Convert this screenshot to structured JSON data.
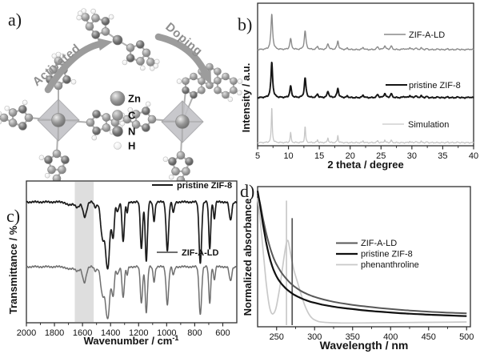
{
  "panels": {
    "a": {
      "letter": "a)",
      "arrows": {
        "left": "Activated",
        "right": "Doping"
      },
      "atom_legend": [
        {
          "element": "Zn"
        },
        {
          "element": "C"
        },
        {
          "element": "N"
        },
        {
          "element": "H"
        }
      ]
    },
    "b": {
      "letter": "b)",
      "xlabel": "2 theta / degree",
      "ylabel": "Intensity / a.u."
    },
    "c": {
      "letter": "c)",
      "xlabel": "Wavenumber / cm",
      "xlabel_sup": "-1",
      "ylabel": "Transmittance / %"
    },
    "d": {
      "letter": "d)",
      "xlabel": "Wavelength / nm",
      "ylabel": "Normalized absorbance"
    }
  },
  "chart_data": [
    {
      "id": "xrd",
      "panel": "b",
      "type": "line",
      "title": "",
      "xlabel": "2 theta / degree",
      "ylabel": "Intensity / a.u.",
      "xlim": [
        5,
        40
      ],
      "xticks": [
        5,
        10,
        15,
        20,
        25,
        30,
        35,
        40
      ],
      "x_minor_step": 2.5,
      "grid": false,
      "legend_position": "right-inside-per-trace",
      "series": [
        {
          "name": "ZIF-A-LD",
          "color": "#8a8a8a",
          "stroke_width": 1.4,
          "baseline_frac": 0.326,
          "amp_frac": 0.25,
          "peak_width": 0.16,
          "peaks_2theta_intensity": [
            [
              7.3,
              1.0
            ],
            [
              10.35,
              0.3
            ],
            [
              12.7,
              0.52
            ],
            [
              14.7,
              0.09
            ],
            [
              16.4,
              0.17
            ],
            [
              18.0,
              0.24
            ],
            [
              19.55,
              0.04
            ],
            [
              22.1,
              0.06
            ],
            [
              24.45,
              0.08
            ],
            [
              25.6,
              0.11
            ],
            [
              26.65,
              0.1
            ],
            [
              28.7,
              0.03
            ],
            [
              29.65,
              0.055
            ],
            [
              30.6,
              0.045
            ],
            [
              31.5,
              0.045
            ],
            [
              32.4,
              0.025
            ],
            [
              34.25,
              0.02
            ],
            [
              35.8,
              0.02
            ],
            [
              37.5,
              0.018
            ],
            [
              39.3,
              0.018
            ]
          ]
        },
        {
          "name": "pristine ZIF-8",
          "color": "#151515",
          "stroke_width": 1.9,
          "baseline_frac": 0.663,
          "amp_frac": 0.25,
          "peak_width": 0.16,
          "peaks_2theta_intensity": [
            [
              7.3,
              1.0
            ],
            [
              10.35,
              0.32
            ],
            [
              12.7,
              0.55
            ],
            [
              14.7,
              0.1
            ],
            [
              16.4,
              0.18
            ],
            [
              18.0,
              0.26
            ],
            [
              19.55,
              0.045
            ],
            [
              22.1,
              0.07
            ],
            [
              24.45,
              0.09
            ],
            [
              25.6,
              0.12
            ],
            [
              26.65,
              0.11
            ],
            [
              28.7,
              0.035
            ],
            [
              29.65,
              0.06
            ],
            [
              30.6,
              0.05
            ],
            [
              31.5,
              0.05
            ],
            [
              32.4,
              0.03
            ],
            [
              34.25,
              0.02
            ],
            [
              35.8,
              0.02
            ],
            [
              37.5,
              0.02
            ],
            [
              39.3,
              0.02
            ]
          ]
        },
        {
          "name": "Simulation",
          "color": "#c6c6c6",
          "stroke_width": 1.3,
          "baseline_frac": 0.978,
          "amp_frac": 0.25,
          "peak_width": 0.09,
          "peaks_2theta_intensity": [
            [
              7.3,
              1.0
            ],
            [
              10.35,
              0.28
            ],
            [
              12.7,
              0.45
            ],
            [
              14.7,
              0.08
            ],
            [
              16.4,
              0.14
            ],
            [
              18.0,
              0.2
            ],
            [
              22.1,
              0.05
            ],
            [
              24.45,
              0.06
            ],
            [
              25.6,
              0.08
            ],
            [
              26.65,
              0.07
            ],
            [
              29.65,
              0.04
            ],
            [
              30.6,
              0.035
            ],
            [
              31.5,
              0.035
            ],
            [
              32.4,
              0.02
            ],
            [
              35.8,
              0.015
            ],
            [
              37.5,
              0.015
            ]
          ]
        }
      ]
    },
    {
      "id": "ftir",
      "panel": "c",
      "type": "line",
      "title": "",
      "xlabel": "Wavenumber / cm-1",
      "ylabel": "Transmittance / %",
      "xlim": [
        2000,
        500
      ],
      "xticks": [
        2000,
        1800,
        1600,
        1400,
        1200,
        1000,
        800,
        600
      ],
      "x_minor_step": 100,
      "grid": false,
      "highlight_band": {
        "x1": 1655,
        "x2": 1520,
        "color": "#d6d6d6"
      },
      "series": [
        {
          "name": "pristine ZIF-8",
          "color": "#1b1b1b",
          "stroke_width": 1.7,
          "baseline_frac": 0.148,
          "depth_frac": 0.47,
          "absorption_bands_center_depth_width": [
            [
              1693,
              0.05,
              20
            ],
            [
              1635,
              0.08,
              16
            ],
            [
              1584,
              0.22,
              13
            ],
            [
              1508,
              0.08,
              10
            ],
            [
              1458,
              0.52,
              13
            ],
            [
              1421,
              1.0,
              15
            ],
            [
              1382,
              0.52,
              9
            ],
            [
              1350,
              0.15,
              8
            ],
            [
              1310,
              0.6,
              8
            ],
            [
              1282,
              0.16,
              6
            ],
            [
              1180,
              0.7,
              8
            ],
            [
              1145,
              0.88,
              8
            ],
            [
              1090,
              0.28,
              7
            ],
            [
              995,
              0.72,
              9
            ],
            [
              952,
              0.16,
              7
            ],
            [
              760,
              0.92,
              9
            ],
            [
              693,
              0.7,
              7
            ],
            [
              660,
              0.26,
              6
            ],
            [
              545,
              0.28,
              9
            ]
          ]
        },
        {
          "name": "ZIF-A-LD",
          "color": "#6f6f6f",
          "stroke_width": 1.5,
          "baseline_frac": 0.605,
          "depth_frac": 0.365,
          "absorption_bands_center_depth_width": [
            [
              1693,
              0.05,
              20
            ],
            [
              1635,
              0.08,
              16
            ],
            [
              1587,
              0.3,
              13
            ],
            [
              1508,
              0.08,
              10
            ],
            [
              1458,
              0.52,
              13
            ],
            [
              1421,
              1.0,
              15
            ],
            [
              1382,
              0.55,
              9
            ],
            [
              1350,
              0.15,
              8
            ],
            [
              1310,
              0.6,
              8
            ],
            [
              1282,
              0.16,
              6
            ],
            [
              1180,
              0.7,
              8
            ],
            [
              1145,
              0.88,
              8
            ],
            [
              1090,
              0.28,
              7
            ],
            [
              995,
              0.72,
              9
            ],
            [
              952,
              0.16,
              7
            ],
            [
              760,
              0.92,
              9
            ],
            [
              693,
              0.7,
              7
            ],
            [
              660,
              0.26,
              6
            ],
            [
              545,
              0.28,
              9
            ]
          ]
        }
      ]
    },
    {
      "id": "uvvis",
      "panel": "d",
      "type": "line",
      "title": "",
      "xlabel": "Wavelength / nm",
      "ylabel": "Normalized absorbance",
      "xlim": [
        225,
        505
      ],
      "xticks": [
        250,
        300,
        350,
        400,
        450,
        500
      ],
      "x_minor_step": 25,
      "grid": false,
      "legend_position": "center-right-inside",
      "vlines": [
        {
          "x": 263,
          "color": "#c9c9c9",
          "height_frac": 0.9
        },
        {
          "x": 270.5,
          "color": "#555555",
          "height_frac": 0.775
        }
      ],
      "series": [
        {
          "name": "ZIF-A-LD",
          "color": "#585858",
          "stroke_width": 2.0,
          "points_nm_abs": [
            [
              225,
              0.95
            ],
            [
              228,
              0.885
            ],
            [
              232,
              0.775
            ],
            [
              236,
              0.675
            ],
            [
              240,
              0.59
            ],
            [
              244,
              0.52
            ],
            [
              248,
              0.465
            ],
            [
              252,
              0.425
            ],
            [
              256,
              0.39
            ],
            [
              260,
              0.36
            ],
            [
              264,
              0.335
            ],
            [
              268,
              0.312
            ],
            [
              272,
              0.293
            ],
            [
              276,
              0.277
            ],
            [
              280,
              0.262
            ],
            [
              285,
              0.247
            ],
            [
              290,
              0.234
            ],
            [
              295,
              0.223
            ],
            [
              300,
              0.213
            ],
            [
              310,
              0.197
            ],
            [
              320,
              0.184
            ],
            [
              330,
              0.173
            ],
            [
              340,
              0.164
            ],
            [
              350,
              0.156
            ],
            [
              365,
              0.146
            ],
            [
              380,
              0.137
            ],
            [
              395,
              0.129
            ],
            [
              410,
              0.122
            ],
            [
              425,
              0.116
            ],
            [
              440,
              0.111
            ],
            [
              455,
              0.106
            ],
            [
              470,
              0.102
            ],
            [
              485,
              0.099
            ],
            [
              500,
              0.096
            ]
          ]
        },
        {
          "name": "pristine ZIF-8",
          "color": "#101010",
          "stroke_width": 2.2,
          "points_nm_abs": [
            [
              225,
              0.97
            ],
            [
              228,
              0.875
            ],
            [
              232,
              0.735
            ],
            [
              236,
              0.61
            ],
            [
              240,
              0.51
            ],
            [
              244,
              0.435
            ],
            [
              248,
              0.38
            ],
            [
              252,
              0.34
            ],
            [
              256,
              0.31
            ],
            [
              260,
              0.285
            ],
            [
              264,
              0.264
            ],
            [
              268,
              0.247
            ],
            [
              272,
              0.232
            ],
            [
              276,
              0.22
            ],
            [
              280,
              0.209
            ],
            [
              285,
              0.197
            ],
            [
              290,
              0.187
            ],
            [
              295,
              0.178
            ],
            [
              300,
              0.171
            ],
            [
              310,
              0.158
            ],
            [
              320,
              0.148
            ],
            [
              330,
              0.139
            ],
            [
              340,
              0.132
            ],
            [
              350,
              0.126
            ],
            [
              365,
              0.117
            ],
            [
              380,
              0.11
            ],
            [
              395,
              0.104
            ],
            [
              410,
              0.098
            ],
            [
              425,
              0.093
            ],
            [
              440,
              0.089
            ],
            [
              455,
              0.085
            ],
            [
              470,
              0.082
            ],
            [
              485,
              0.079
            ],
            [
              500,
              0.076
            ]
          ]
        },
        {
          "name": "phenanthroline",
          "color": "#c9c9c9",
          "stroke_width": 1.7,
          "points_nm_abs": [
            [
              225,
              0.92
            ],
            [
              228,
              0.78
            ],
            [
              232,
              0.56
            ],
            [
              236,
              0.33
            ],
            [
              240,
              0.16
            ],
            [
              243,
              0.1
            ],
            [
              246,
              0.095
            ],
            [
              249,
              0.13
            ],
            [
              252,
              0.21
            ],
            [
              255,
              0.31
            ],
            [
              258,
              0.43
            ],
            [
              261,
              0.54
            ],
            [
              263,
              0.6
            ],
            [
              265,
              0.615
            ],
            [
              267,
              0.565
            ],
            [
              270,
              0.475
            ],
            [
              273,
              0.4
            ],
            [
              276,
              0.345
            ],
            [
              279,
              0.29
            ],
            [
              282,
              0.235
            ],
            [
              285,
              0.185
            ],
            [
              288,
              0.14
            ],
            [
              291,
              0.105
            ],
            [
              294,
              0.078
            ],
            [
              297,
              0.06
            ],
            [
              300,
              0.049
            ],
            [
              305,
              0.038
            ],
            [
              310,
              0.033
            ],
            [
              320,
              0.029
            ],
            [
              335,
              0.027
            ],
            [
              350,
              0.027
            ],
            [
              375,
              0.028
            ],
            [
              400,
              0.029
            ],
            [
              430,
              0.031
            ],
            [
              460,
              0.032
            ],
            [
              500,
              0.034
            ]
          ]
        }
      ]
    }
  ]
}
